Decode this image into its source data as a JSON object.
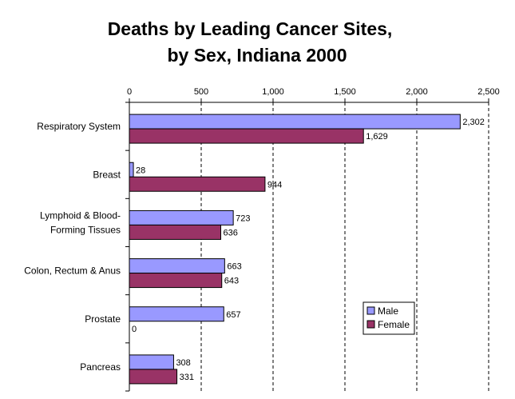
{
  "chart_data": {
    "type": "bar",
    "orientation": "horizontal",
    "title": [
      "Deaths by Leading Cancer Sites,",
      "by Sex, Indiana 2000"
    ],
    "categories": [
      [
        "Respiratory System"
      ],
      [
        "Breast"
      ],
      [
        "Lymphoid & Blood-",
        "Forming Tissues"
      ],
      [
        "Colon, Rectum & Anus"
      ],
      [
        "Prostate"
      ],
      [
        "Pancreas"
      ]
    ],
    "series": [
      {
        "name": "Male",
        "color": "#9999ff",
        "values": [
          2302,
          28,
          723,
          663,
          657,
          308
        ],
        "labels": [
          "2,302",
          "28",
          "723",
          "663",
          "657",
          "308"
        ]
      },
      {
        "name": "Female",
        "color": "#993366",
        "values": [
          1629,
          944,
          636,
          643,
          0,
          331
        ],
        "labels": [
          "1,629",
          "944",
          "636",
          "643",
          "0",
          "331"
        ]
      }
    ],
    "xlim": [
      0,
      2500
    ],
    "xticks": [
      0,
      500,
      1000,
      1500,
      2000,
      2500
    ],
    "xtick_labels": [
      "0",
      "500",
      "1,000",
      "1,500",
      "2,000",
      "2,500"
    ],
    "xaxis_position": "top",
    "grid": "vertical dashed",
    "legend_position": "bottom-right",
    "xlabel": "",
    "ylabel": ""
  }
}
